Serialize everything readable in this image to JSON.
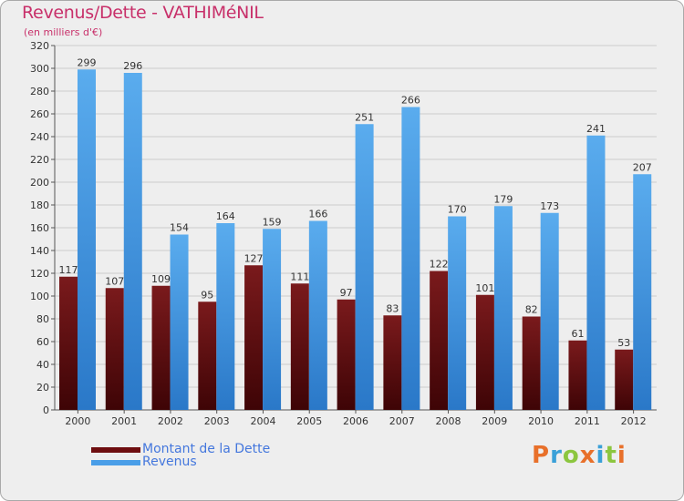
{
  "header": {
    "title": "Revenus/Dette - VATHIMéNIL",
    "subtitle": "(en milliers d'€)"
  },
  "chart_data": {
    "type": "bar",
    "categories": [
      "2000",
      "2001",
      "2002",
      "2003",
      "2004",
      "2005",
      "2006",
      "2007",
      "2008",
      "2009",
      "2010",
      "2011",
      "2012"
    ],
    "series": [
      {
        "name": "Montant de la Dette",
        "color": "#6e0e10",
        "values": [
          117,
          107,
          109,
          95,
          127,
          111,
          97,
          83,
          122,
          101,
          82,
          61,
          53
        ]
      },
      {
        "name": "Revenus",
        "color": "#4a9ee8",
        "values": [
          299,
          296,
          154,
          164,
          159,
          166,
          251,
          266,
          170,
          179,
          173,
          241,
          207
        ]
      }
    ],
    "ylim": [
      0,
      320
    ],
    "ytick_step": 20,
    "grid": true,
    "legend_position": "bottom-left"
  },
  "legend": {
    "items": [
      {
        "label": "Montant de la Dette",
        "color": "#6e0e10"
      },
      {
        "label": "Revenus",
        "color": "#4a9ee8"
      }
    ]
  },
  "logo": {
    "letters": [
      "P",
      "r",
      "o",
      "x",
      "i",
      "t",
      "i"
    ],
    "colors": [
      "#e8702a",
      "#3aa0d8",
      "#8cc63f",
      "#e8702a",
      "#3aa0d8",
      "#8cc63f",
      "#e8702a"
    ]
  }
}
